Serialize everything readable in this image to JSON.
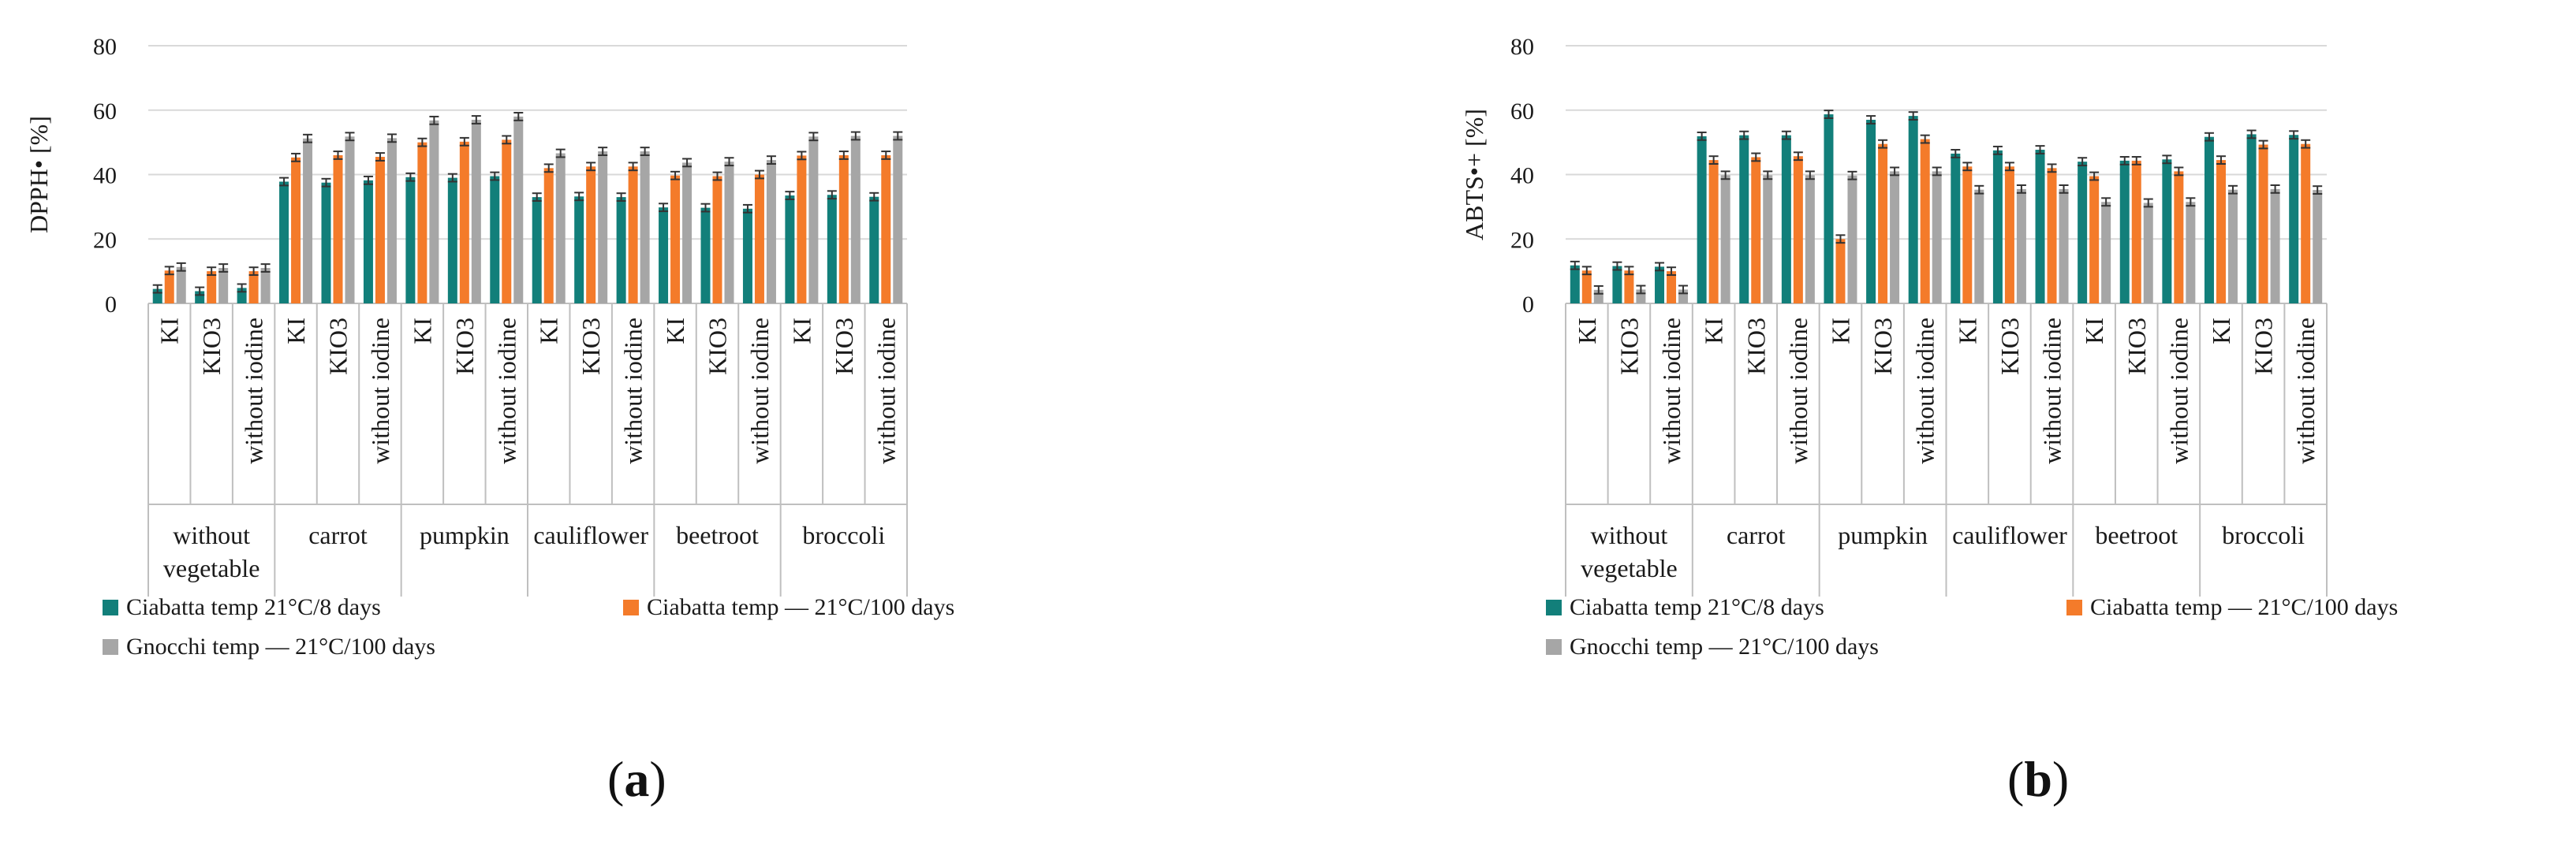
{
  "chart_data": [
    {
      "type": "bar",
      "panel_label": "a",
      "ylabel": "DPPH• [%]",
      "ylim": [
        0,
        80
      ],
      "yticks": [
        0,
        20,
        40,
        60,
        80
      ],
      "grid": true,
      "legend_position": "bottom-left",
      "groups": [
        "without vegetable",
        "carrot",
        "pumpkin",
        "cauliflower",
        "beetroot",
        "broccoli"
      ],
      "subcategories": [
        "KI",
        "KIO3",
        "without iodine"
      ],
      "series": [
        {
          "name": "Ciabatta temp 21°C/8 days",
          "color": "#127f7a",
          "values": [
            4.5,
            3.8,
            4.8,
            37.8,
            37.5,
            38.2,
            39.2,
            39.0,
            39.5,
            33.0,
            33.2,
            33.0,
            29.8,
            29.7,
            29.4,
            33.5,
            33.7,
            33.1
          ]
        },
        {
          "name": "Ciabatta temp — 21°C/100 days",
          "color": "#f47b2a",
          "values": [
            10.2,
            10.0,
            10.0,
            45.3,
            46.0,
            45.5,
            50.0,
            50.2,
            50.8,
            42.0,
            42.5,
            42.5,
            39.7,
            39.5,
            40.0,
            45.9,
            46.0,
            46.0
          ]
        },
        {
          "name": "Gnocchi temp — 21°C/100 days",
          "color": "#a6a6a6",
          "values": [
            11.3,
            11.0,
            11.0,
            51.2,
            51.8,
            51.3,
            56.8,
            57.0,
            58.0,
            46.6,
            47.2,
            47.2,
            43.7,
            44.0,
            44.5,
            51.8,
            52.0,
            52.0
          ]
        }
      ],
      "legend": [
        "Ciabatta temp 21°C/8 days",
        "Ciabatta temp — 21°C/100 days",
        "Gnocchi temp — 21°C/100 days"
      ]
    },
    {
      "type": "bar",
      "panel_label": "b",
      "ylabel": "ABTS•+ [%]",
      "ylim": [
        0,
        80
      ],
      "yticks": [
        0,
        20,
        40,
        60,
        80
      ],
      "grid": true,
      "legend_position": "bottom-left",
      "groups": [
        "without vegetable",
        "carrot",
        "pumpkin",
        "cauliflower",
        "beetroot",
        "broccoli"
      ],
      "subcategories": [
        "KI",
        "KIO3",
        "without iodine"
      ],
      "series": [
        {
          "name": "Ciabatta temp 21°C/8 days",
          "color": "#127f7a",
          "values": [
            11.8,
            11.6,
            11.4,
            51.9,
            52.2,
            52.2,
            58.7,
            57.0,
            58.2,
            46.5,
            47.5,
            47.7,
            44.0,
            44.3,
            44.7,
            51.7,
            52.5,
            52.3
          ]
        },
        {
          "name": "Ciabatta temp — 21°C/100 days",
          "color": "#f47b2a",
          "values": [
            10.2,
            10.2,
            10.0,
            44.5,
            45.4,
            45.7,
            20.0,
            49.5,
            51.0,
            42.5,
            42.5,
            42.0,
            39.5,
            44.3,
            41.0,
            44.5,
            49.3,
            49.5
          ]
        },
        {
          "name": "Gnocchi temp — 21°C/100 days",
          "color": "#a6a6a6",
          "values": [
            4.2,
            4.3,
            4.3,
            39.8,
            39.8,
            39.8,
            39.7,
            41.0,
            41.0,
            35.3,
            35.5,
            35.5,
            31.5,
            31.2,
            31.5,
            35.3,
            35.5,
            35.2
          ]
        }
      ],
      "legend": [
        "Ciabatta temp 21°C/8 days",
        "Ciabatta temp — 21°C/100 days",
        "Gnocchi temp — 21°C/100 days"
      ]
    }
  ]
}
